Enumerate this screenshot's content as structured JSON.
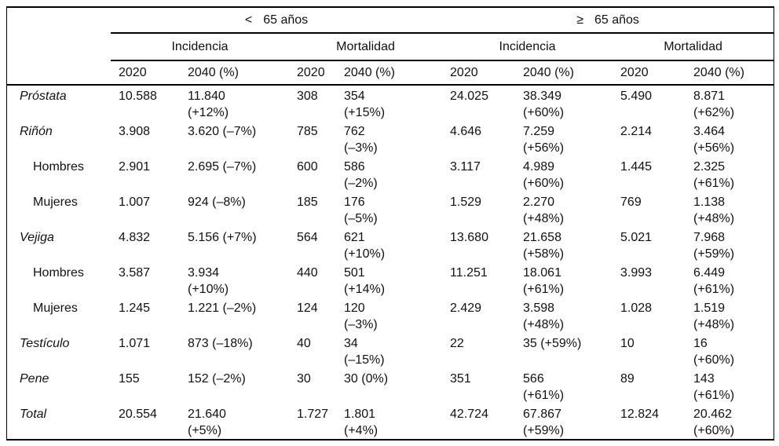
{
  "table": {
    "age_groups": [
      {
        "symbol": "<",
        "label": "65 años"
      },
      {
        "symbol": "≥",
        "label": "65 años"
      }
    ],
    "measures": [
      "Incidencia",
      "Mortalidad",
      "Incidencia",
      "Mortalidad"
    ],
    "year_headers": [
      "2020",
      "2040 (%)",
      "2020",
      "2040 (%)",
      "2020",
      "2040 (%)",
      "2020",
      "2040 (%)"
    ],
    "rows": [
      {
        "label": "Próstata",
        "style": "category",
        "cells": [
          [
            "10.588"
          ],
          [
            "11.840",
            "(+12%)"
          ],
          [
            "308"
          ],
          [
            "354",
            "(+15%)"
          ],
          [
            "24.025"
          ],
          [
            "38.349",
            "(+60%)"
          ],
          [
            "5.490"
          ],
          [
            "8.871",
            "(+62%)"
          ]
        ]
      },
      {
        "label": "Riñón",
        "style": "category",
        "cells": [
          [
            "3.908"
          ],
          [
            "3.620 (–7%)"
          ],
          [
            "785"
          ],
          [
            "762",
            "(–3%)"
          ],
          [
            "4.646"
          ],
          [
            "7.259",
            "(+56%)"
          ],
          [
            "2.214"
          ],
          [
            "3.464",
            "(+56%)"
          ]
        ]
      },
      {
        "label": "Hombres",
        "style": "subrow",
        "cells": [
          [
            "2.901"
          ],
          [
            "2.695 (–7%)"
          ],
          [
            "600"
          ],
          [
            "586",
            "(–2%)"
          ],
          [
            "3.117"
          ],
          [
            "4.989",
            "(+60%)"
          ],
          [
            "1.445"
          ],
          [
            "2.325",
            "(+61%)"
          ]
        ]
      },
      {
        "label": "Mujeres",
        "style": "subrow",
        "cells": [
          [
            "1.007"
          ],
          [
            "924 (–8%)"
          ],
          [
            "185"
          ],
          [
            "176",
            "(–5%)"
          ],
          [
            "1.529"
          ],
          [
            "2.270",
            "(+48%)"
          ],
          [
            "769"
          ],
          [
            "1.138",
            "(+48%)"
          ]
        ]
      },
      {
        "label": "Vejiga",
        "style": "category",
        "cells": [
          [
            "4.832"
          ],
          [
            "5.156 (+7%)"
          ],
          [
            "564"
          ],
          [
            "621",
            "(+10%)"
          ],
          [
            "13.680"
          ],
          [
            "21.658",
            "(+58%)"
          ],
          [
            "5.021"
          ],
          [
            "7.968",
            "(+59%)"
          ]
        ]
      },
      {
        "label": "Hombres",
        "style": "subrow",
        "cells": [
          [
            "3.587"
          ],
          [
            "3.934",
            "(+10%)"
          ],
          [
            "440"
          ],
          [
            "501",
            "(+14%)"
          ],
          [
            "11.251"
          ],
          [
            "18.061",
            "(+61%)"
          ],
          [
            "3.993"
          ],
          [
            "6.449",
            "(+61%)"
          ]
        ]
      },
      {
        "label": "Mujeres",
        "style": "subrow",
        "cells": [
          [
            "1.245"
          ],
          [
            "1.221 (–2%)"
          ],
          [
            "124"
          ],
          [
            "120",
            "(–3%)"
          ],
          [
            "2.429"
          ],
          [
            "3.598",
            "(+48%)"
          ],
          [
            "1.028"
          ],
          [
            "1.519",
            "(+48%)"
          ]
        ]
      },
      {
        "label": "Testículo",
        "style": "category",
        "cells": [
          [
            "1.071"
          ],
          [
            "873 (–18%)"
          ],
          [
            "40"
          ],
          [
            "34",
            "(–15%)"
          ],
          [
            "22"
          ],
          [
            "35 (+59%)"
          ],
          [
            "10"
          ],
          [
            "16",
            "(+60%)"
          ]
        ]
      },
      {
        "label": "Pene",
        "style": "category",
        "cells": [
          [
            "155"
          ],
          [
            "152 (–2%)"
          ],
          [
            "30"
          ],
          [
            "30 (0%)"
          ],
          [
            "351"
          ],
          [
            "566",
            "(+61%)"
          ],
          [
            "89"
          ],
          [
            "143",
            "(+61%)"
          ]
        ]
      },
      {
        "label": "Total",
        "style": "category",
        "cells": [
          [
            "20.554"
          ],
          [
            "21.640",
            "(+5%)"
          ],
          [
            "1.727"
          ],
          [
            "1.801",
            "(+4%)"
          ],
          [
            "42.724"
          ],
          [
            "67.867",
            "(+59%)"
          ],
          [
            "12.824"
          ],
          [
            "20.462",
            "(+60%)"
          ]
        ]
      }
    ]
  },
  "colors": {
    "text": "#111111",
    "rule": "#000000",
    "background": "#ffffff"
  }
}
